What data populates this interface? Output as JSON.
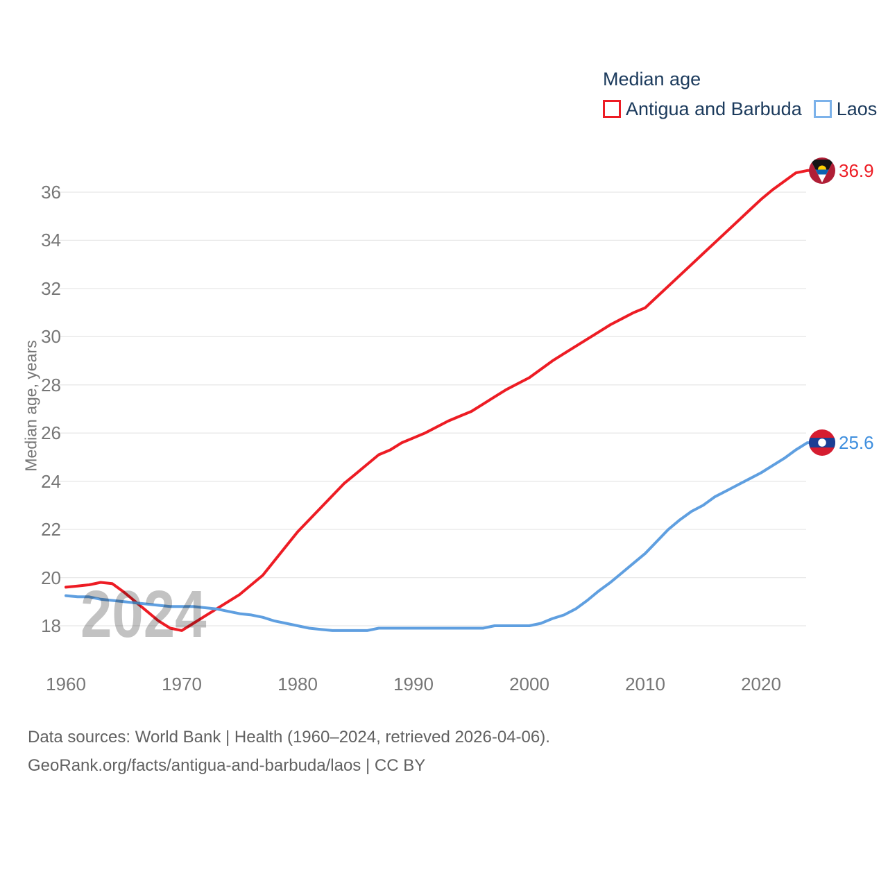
{
  "legend": {
    "title": "Median age"
  },
  "watermark": "2024",
  "footer": {
    "line1": "Data sources: World Bank | Health (1960–2024, retrieved 2026-04-06).",
    "line2": "GeoRank.org/facts/antigua-and-barbuda/laos | CC BY"
  },
  "chart_data": {
    "type": "line",
    "title": "Median age",
    "xlabel": "",
    "ylabel": "Median age, years",
    "grid": true,
    "legend_position": "top-right",
    "xlim": [
      1960,
      2024
    ],
    "ylim": [
      17,
      37.5
    ],
    "xticks": [
      1960,
      1970,
      1980,
      1990,
      2000,
      2010,
      2020
    ],
    "yticks": [
      18,
      20,
      22,
      24,
      26,
      28,
      30,
      32,
      34,
      36
    ],
    "x": [
      1960,
      1961,
      1962,
      1963,
      1964,
      1965,
      1966,
      1967,
      1968,
      1969,
      1970,
      1971,
      1972,
      1973,
      1974,
      1975,
      1976,
      1977,
      1978,
      1979,
      1980,
      1981,
      1982,
      1983,
      1984,
      1985,
      1986,
      1987,
      1988,
      1989,
      1990,
      1991,
      1992,
      1993,
      1994,
      1995,
      1996,
      1997,
      1998,
      1999,
      2000,
      2001,
      2002,
      2003,
      2004,
      2005,
      2006,
      2007,
      2008,
      2009,
      2010,
      2011,
      2012,
      2013,
      2014,
      2015,
      2016,
      2017,
      2018,
      2019,
      2020,
      2021,
      2022,
      2023,
      2024
    ],
    "series": [
      {
        "name": "Antigua and Barbuda",
        "color": "#ed1c24",
        "legend_color": "#ed1c24",
        "label_color": "#ed1c24",
        "end_label": "36.9",
        "values": [
          19.6,
          19.65,
          19.7,
          19.8,
          19.75,
          19.4,
          19.0,
          18.6,
          18.2,
          17.9,
          17.8,
          18.1,
          18.4,
          18.7,
          19.0,
          19.3,
          19.7,
          20.1,
          20.7,
          21.3,
          21.9,
          22.4,
          22.9,
          23.4,
          23.9,
          24.3,
          24.7,
          25.1,
          25.3,
          25.6,
          25.8,
          26.0,
          26.25,
          26.5,
          26.7,
          26.9,
          27.2,
          27.5,
          27.8,
          28.05,
          28.3,
          28.65,
          29.0,
          29.3,
          29.6,
          29.9,
          30.2,
          30.5,
          30.75,
          31.0,
          31.2,
          31.65,
          32.1,
          32.55,
          33.0,
          33.45,
          33.9,
          34.35,
          34.8,
          35.25,
          35.7,
          36.1,
          36.45,
          36.8,
          36.9
        ]
      },
      {
        "name": "Laos",
        "color": "#5f9fe0",
        "legend_color": "#7cb2ea",
        "label_color": "#3f8fde",
        "end_label": "25.6",
        "values": [
          19.25,
          19.2,
          19.2,
          19.1,
          19.05,
          19.0,
          18.95,
          18.9,
          18.85,
          18.8,
          18.8,
          18.8,
          18.75,
          18.7,
          18.6,
          18.5,
          18.45,
          18.35,
          18.2,
          18.1,
          18.0,
          17.9,
          17.85,
          17.8,
          17.8,
          17.8,
          17.8,
          17.9,
          17.9,
          17.9,
          17.9,
          17.9,
          17.9,
          17.9,
          17.9,
          17.9,
          17.9,
          18.0,
          18.0,
          18.0,
          18.0,
          18.1,
          18.3,
          18.45,
          18.7,
          19.05,
          19.45,
          19.8,
          20.2,
          20.6,
          21.0,
          21.5,
          22.0,
          22.4,
          22.75,
          23.0,
          23.35,
          23.6,
          23.85,
          24.1,
          24.35,
          24.65,
          24.95,
          25.3,
          25.6
        ]
      }
    ]
  }
}
